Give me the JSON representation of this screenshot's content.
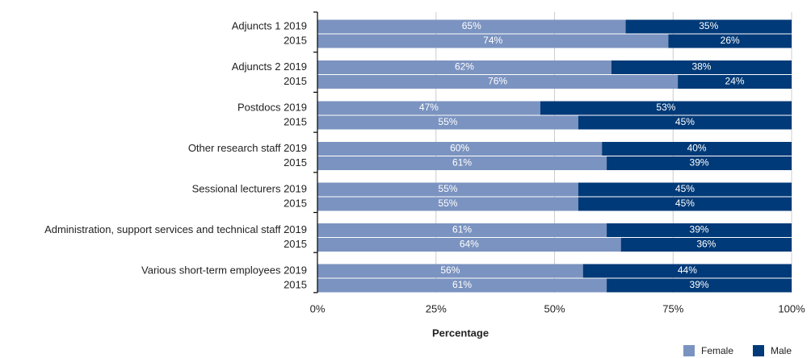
{
  "chart_data": {
    "type": "stacked_barh",
    "categories": [
      "Adjuncts 1 2019",
      "2015",
      "Adjuncts 2 2019",
      "2015",
      "Postdocs 2019",
      "2015",
      "Other research staff 2019",
      "2015",
      "Sessional lecturers 2019",
      "2015",
      "Administration, support services and technical staff 2019",
      "2015",
      "Various short-term employees 2019",
      "2015"
    ],
    "series": [
      {
        "name": "Female",
        "color": "#7b93c0",
        "values": [
          65,
          74,
          62,
          76,
          47,
          55,
          60,
          61,
          55,
          55,
          61,
          64,
          56,
          61
        ],
        "value_labels": [
          "65%",
          "74%",
          "62%",
          "76%",
          "47%",
          "55%",
          "60%",
          "61%",
          "55%",
          "55%",
          "61%",
          "64%",
          "56%",
          "61%"
        ]
      },
      {
        "name": "Male",
        "color": "#003a78",
        "values": [
          35,
          26,
          38,
          24,
          53,
          45,
          40,
          39,
          45,
          45,
          39,
          36,
          44,
          39
        ],
        "value_labels": [
          "35%",
          "26%",
          "38%",
          "24%",
          "53%",
          "45%",
          "40%",
          "39%",
          "45%",
          "45%",
          "39%",
          "36%",
          "44%",
          "39%"
        ]
      }
    ],
    "xlabel": "Percentage",
    "xlim": [
      0,
      100
    ],
    "xticks": [
      {
        "value": 0,
        "label": "0%"
      },
      {
        "value": 25,
        "label": "25%"
      },
      {
        "value": 50,
        "label": "50%"
      },
      {
        "value": 75,
        "label": "75%"
      },
      {
        "value": 100,
        "label": "100%"
      }
    ],
    "grid": true,
    "legend": "bottom-right"
  }
}
